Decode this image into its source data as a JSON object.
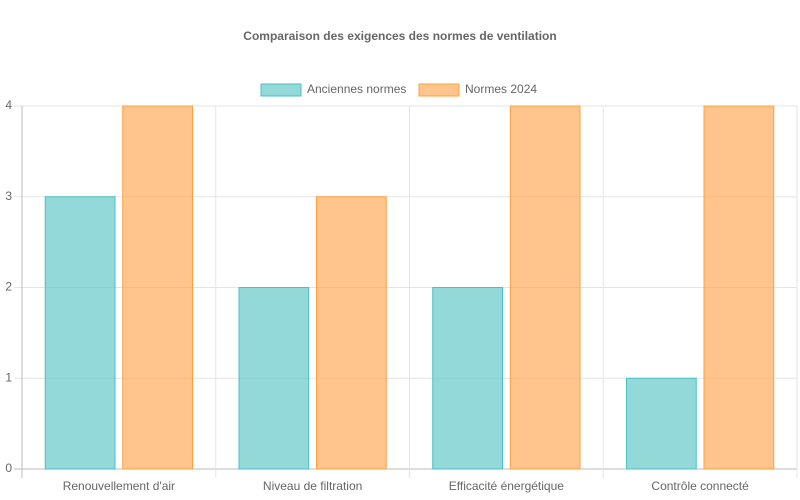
{
  "chart_data": {
    "type": "bar",
    "title": "Comparaison des exigences des normes de ventilation",
    "categories": [
      "Renouvellement d'air",
      "Niveau de filtration",
      "Efficacité énergétique",
      "Contrôle connecté"
    ],
    "series": [
      {
        "name": "Anciennes normes",
        "color": "#4bc0c0",
        "values": [
          3,
          2,
          2,
          1
        ]
      },
      {
        "name": "Normes 2024",
        "color": "#ff9f40",
        "values": [
          4,
          3,
          4,
          4
        ]
      }
    ],
    "ylim": [
      0,
      4
    ],
    "yticks": [
      0,
      1,
      2,
      3,
      4
    ],
    "grid": true,
    "legend": "top"
  }
}
